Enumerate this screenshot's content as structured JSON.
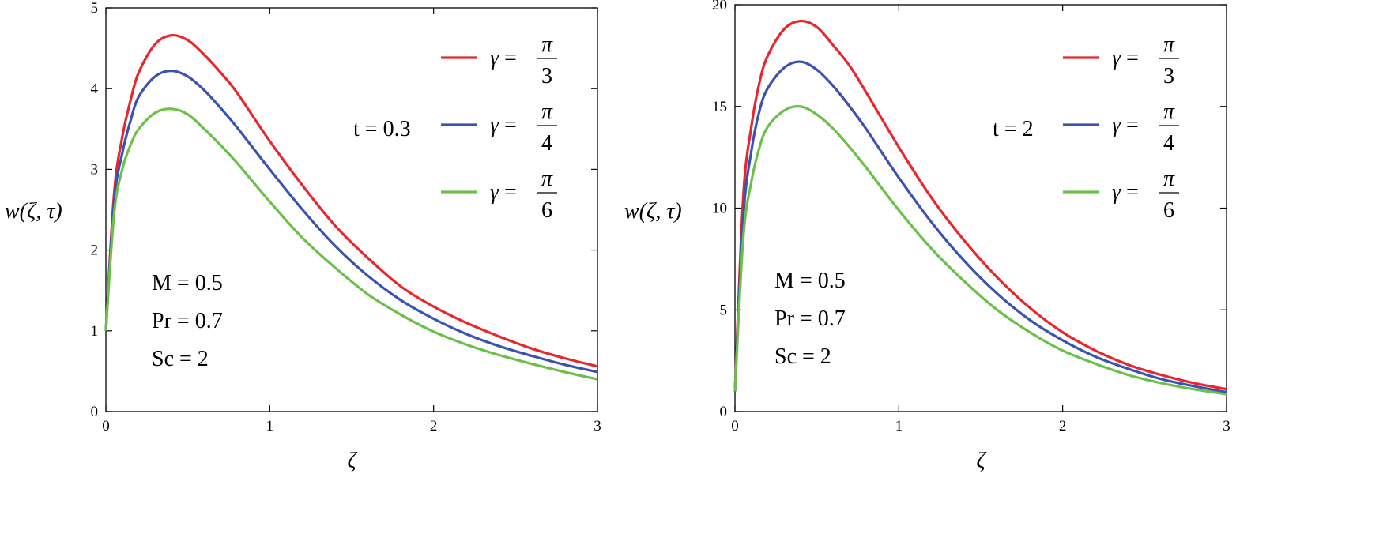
{
  "colors": {
    "red": "#e8262b",
    "blue": "#3a52b2",
    "green": "#6cc04a",
    "axis": "#000000"
  },
  "chart_data": [
    {
      "type": "line",
      "xlabel": "ζ",
      "ylabel": "w(ζ, τ)",
      "xlim": [
        0,
        3
      ],
      "ylim": [
        0,
        5
      ],
      "xticks": [
        "0",
        "1",
        "2",
        "3"
      ],
      "yticks": [
        "0",
        "1",
        "2",
        "3",
        "4",
        "5"
      ],
      "time_label": "t = 0.3",
      "params": [
        "M = 0.5",
        "Pr = 0.7",
        "Sc = 2"
      ],
      "series": [
        {
          "name": "γ = π/3",
          "gamma_num": "π",
          "gamma_den": "3",
          "color": "#e8262b",
          "x": [
            0,
            0.05,
            0.1,
            0.15,
            0.2,
            0.3,
            0.4,
            0.5,
            0.6,
            0.7,
            0.8,
            1.0,
            1.2,
            1.4,
            1.6,
            1.8,
            2.0,
            2.2,
            2.4,
            2.6,
            2.8,
            3.0
          ],
          "y": [
            1.0,
            2.7,
            3.4,
            3.85,
            4.2,
            4.55,
            4.66,
            4.6,
            4.42,
            4.2,
            3.95,
            3.35,
            2.8,
            2.3,
            1.9,
            1.55,
            1.3,
            1.1,
            0.93,
            0.78,
            0.66,
            0.56
          ]
        },
        {
          "name": "γ = π/4",
          "gamma_num": "π",
          "gamma_den": "4",
          "color": "#3a52b2",
          "x": [
            0,
            0.05,
            0.1,
            0.15,
            0.2,
            0.3,
            0.4,
            0.5,
            0.6,
            0.7,
            0.8,
            1.0,
            1.2,
            1.4,
            1.6,
            1.8,
            2.0,
            2.2,
            2.4,
            2.6,
            2.8,
            3.0
          ],
          "y": [
            1.0,
            2.6,
            3.2,
            3.6,
            3.9,
            4.15,
            4.22,
            4.15,
            3.98,
            3.76,
            3.52,
            3.0,
            2.5,
            2.05,
            1.68,
            1.38,
            1.15,
            0.96,
            0.81,
            0.69,
            0.58,
            0.49
          ]
        },
        {
          "name": "γ = π/6",
          "gamma_num": "π",
          "gamma_den": "6",
          "color": "#6cc04a",
          "x": [
            0,
            0.05,
            0.1,
            0.15,
            0.2,
            0.3,
            0.4,
            0.5,
            0.6,
            0.7,
            0.8,
            1.0,
            1.2,
            1.4,
            1.6,
            1.8,
            2.0,
            2.2,
            2.4,
            2.6,
            2.8,
            3.0
          ],
          "y": [
            1.0,
            2.45,
            3.0,
            3.3,
            3.5,
            3.7,
            3.75,
            3.68,
            3.5,
            3.3,
            3.08,
            2.6,
            2.15,
            1.78,
            1.45,
            1.2,
            0.99,
            0.83,
            0.7,
            0.59,
            0.49,
            0.4
          ]
        }
      ]
    },
    {
      "type": "line",
      "xlabel": "ζ",
      "ylabel": "w(ζ, τ)",
      "xlim": [
        0,
        3
      ],
      "ylim": [
        0,
        20
      ],
      "xticks": [
        "0",
        "1",
        "2",
        "3"
      ],
      "yticks": [
        "0",
        "5",
        "10",
        "15",
        "20"
      ],
      "time_label": "t = 2",
      "params": [
        "M = 0.5",
        "Pr = 0.7",
        "Sc = 2"
      ],
      "series": [
        {
          "name": "γ = π/3",
          "gamma_num": "π",
          "gamma_den": "3",
          "color": "#e8262b",
          "x": [
            0,
            0.05,
            0.1,
            0.15,
            0.2,
            0.3,
            0.4,
            0.5,
            0.6,
            0.7,
            0.8,
            1.0,
            1.2,
            1.4,
            1.6,
            1.8,
            2.0,
            2.2,
            2.4,
            2.6,
            2.8,
            3.0
          ],
          "y": [
            1.0,
            10.5,
            14.0,
            16.2,
            17.5,
            18.8,
            19.2,
            18.9,
            18.0,
            17.0,
            15.7,
            13.0,
            10.5,
            8.4,
            6.6,
            5.1,
            3.9,
            3.0,
            2.3,
            1.8,
            1.4,
            1.1
          ]
        },
        {
          "name": "γ = π/4",
          "gamma_num": "π",
          "gamma_den": "4",
          "color": "#3a52b2",
          "x": [
            0,
            0.05,
            0.1,
            0.15,
            0.2,
            0.3,
            0.4,
            0.5,
            0.6,
            0.7,
            0.8,
            1.0,
            1.2,
            1.4,
            1.6,
            1.8,
            2.0,
            2.2,
            2.4,
            2.6,
            2.8,
            3.0
          ],
          "y": [
            1.0,
            9.5,
            12.8,
            14.8,
            15.9,
            16.9,
            17.2,
            16.8,
            16.0,
            15.0,
            13.9,
            11.5,
            9.3,
            7.4,
            5.8,
            4.5,
            3.5,
            2.7,
            2.1,
            1.6,
            1.25,
            0.95
          ]
        },
        {
          "name": "γ = π/6",
          "gamma_num": "π",
          "gamma_den": "6",
          "color": "#6cc04a",
          "x": [
            0,
            0.05,
            0.1,
            0.15,
            0.2,
            0.3,
            0.4,
            0.5,
            0.6,
            0.7,
            0.8,
            1.0,
            1.2,
            1.4,
            1.6,
            1.8,
            2.0,
            2.2,
            2.4,
            2.6,
            2.8,
            3.0
          ],
          "y": [
            1.0,
            8.5,
            11.3,
            13.0,
            14.0,
            14.8,
            15.0,
            14.6,
            13.9,
            13.0,
            12.0,
            9.9,
            8.0,
            6.4,
            5.0,
            3.9,
            3.0,
            2.35,
            1.8,
            1.4,
            1.1,
            0.85
          ]
        }
      ]
    }
  ]
}
